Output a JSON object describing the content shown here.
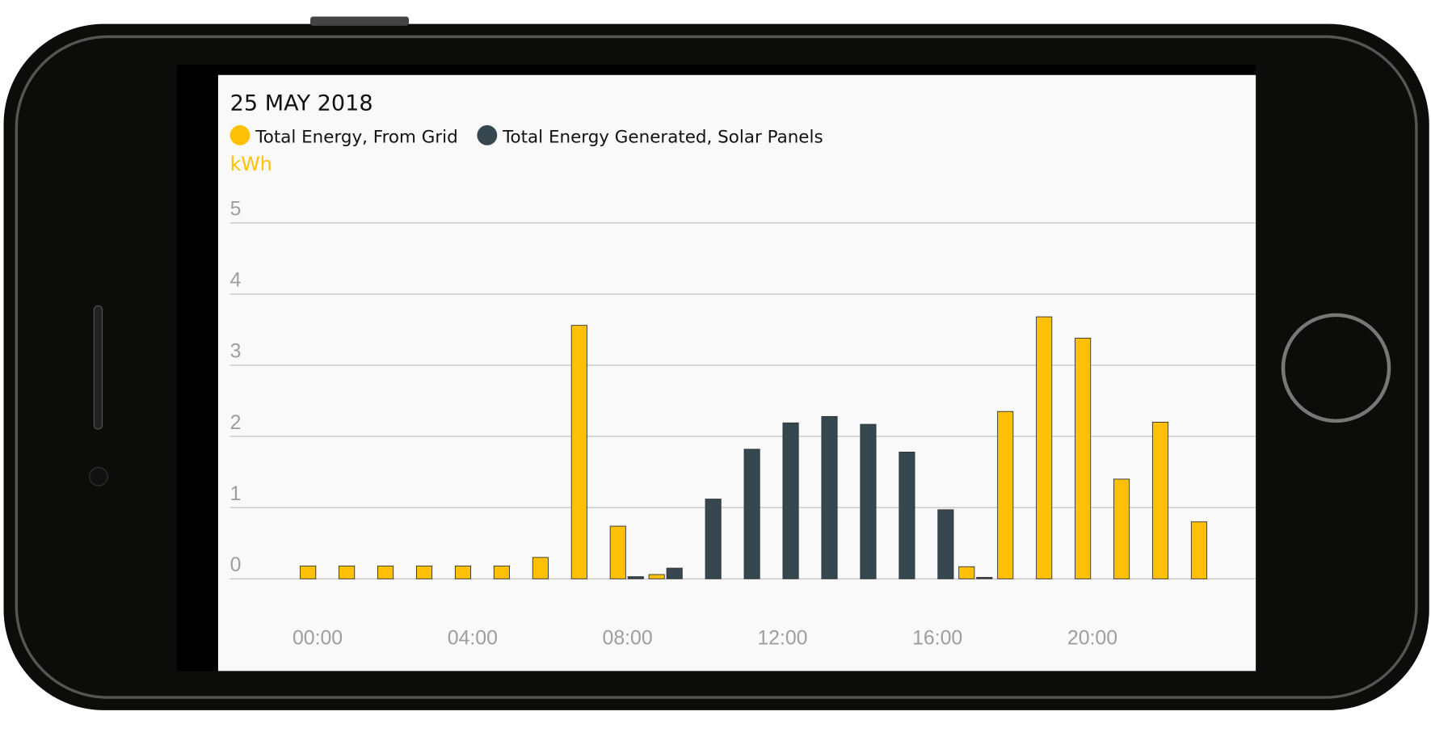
{
  "chart_data": {
    "type": "bar",
    "title": "25 MAY 2018",
    "y_label": "kWh",
    "categories": [
      "00:00",
      null,
      null,
      null,
      "04:00",
      null,
      null,
      null,
      "08:00",
      null,
      null,
      null,
      "12:00",
      null,
      null,
      null,
      "16:00",
      null,
      null,
      null,
      "20:00",
      null,
      null,
      null
    ],
    "series": [
      {
        "name": "Total Energy, From Grid",
        "color": "#ffc107",
        "values": [
          0.18,
          0.18,
          0.18,
          0.18,
          0.18,
          0.18,
          0.3,
          3.56,
          0.74,
          0.06,
          0,
          0,
          0,
          0,
          0,
          0,
          0,
          0.17,
          2.35,
          3.68,
          3.38,
          1.4,
          2.2,
          0.8
        ]
      },
      {
        "name": "Total Energy Generated, Solar Panels",
        "color": "#37474f",
        "values": [
          0,
          0,
          0,
          0,
          0,
          0,
          0,
          0,
          0.03,
          0.15,
          1.12,
          1.82,
          2.19,
          2.28,
          2.17,
          1.78,
          0.97,
          0.02,
          0,
          0,
          0,
          0,
          0,
          0
        ]
      }
    ],
    "ylim": [
      0,
      5
    ],
    "yticks": [
      0,
      1,
      2,
      3,
      4,
      5
    ],
    "grid": true
  }
}
